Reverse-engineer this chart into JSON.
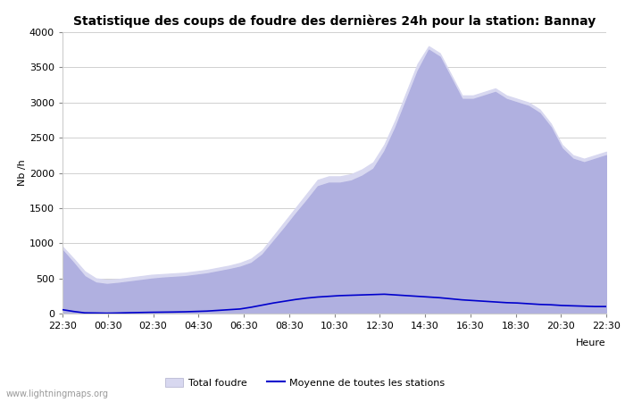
{
  "title": "Statistique des coups de foudre des dernières 24h pour la station: Bannay",
  "ylabel": "Nb /h",
  "xlabel": "Heure",
  "watermark": "www.lightningmaps.org",
  "ylim": [
    0,
    4000
  ],
  "yticks": [
    0,
    500,
    1000,
    1500,
    2000,
    2500,
    3000,
    3500,
    4000
  ],
  "xtick_labels": [
    "22:30",
    "00:30",
    "02:30",
    "04:30",
    "06:30",
    "08:30",
    "10:30",
    "12:30",
    "14:30",
    "16:30",
    "18:30",
    "20:30",
    "22:30"
  ],
  "total_foudre": [
    950,
    780,
    600,
    500,
    480,
    490,
    510,
    530,
    550,
    560,
    570,
    580,
    600,
    620,
    650,
    680,
    720,
    780,
    900,
    1100,
    1300,
    1500,
    1700,
    1900,
    1950,
    1950,
    1980,
    2050,
    2150,
    2400,
    2750,
    3150,
    3550,
    3800,
    3700,
    3400,
    3100,
    3100,
    3150,
    3200,
    3100,
    3050,
    3000,
    2900,
    2700,
    2400,
    2250,
    2200,
    2250,
    2300
  ],
  "bannay": [
    900,
    720,
    530,
    440,
    420,
    435,
    455,
    475,
    495,
    510,
    520,
    530,
    550,
    570,
    600,
    630,
    665,
    720,
    840,
    1030,
    1220,
    1420,
    1610,
    1810,
    1860,
    1860,
    1890,
    1960,
    2060,
    2310,
    2650,
    3050,
    3450,
    3750,
    3650,
    3350,
    3050,
    3050,
    3100,
    3150,
    3050,
    3000,
    2950,
    2850,
    2650,
    2350,
    2200,
    2150,
    2200,
    2250
  ],
  "moyenne": [
    55,
    30,
    10,
    8,
    5,
    8,
    12,
    15,
    18,
    20,
    22,
    25,
    30,
    35,
    45,
    55,
    65,
    90,
    120,
    150,
    175,
    200,
    220,
    235,
    245,
    255,
    260,
    265,
    270,
    275,
    265,
    255,
    245,
    235,
    225,
    210,
    195,
    185,
    175,
    165,
    155,
    150,
    140,
    130,
    125,
    115,
    110,
    105,
    100,
    100
  ],
  "fill_total_color": "#d8d8f0",
  "fill_bannay_color": "#b0b0e0",
  "line_moyenne_color": "#0000cc",
  "bg_color": "#ffffff",
  "grid_color": "#d0d0d0",
  "title_fontsize": 10,
  "axis_fontsize": 8,
  "tick_fontsize": 8,
  "legend_fontsize": 8
}
